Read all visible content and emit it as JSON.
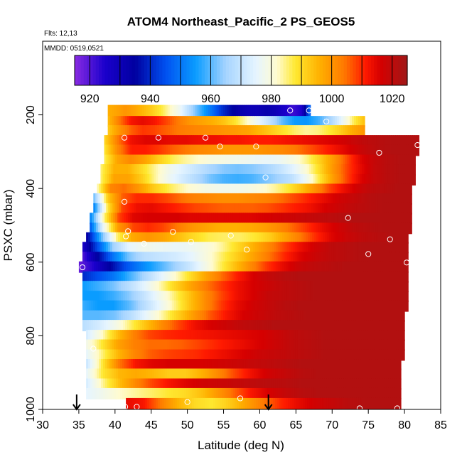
{
  "chart_data": {
    "type": "heatmap",
    "title": "ATOM4 Northeast_Pacific_2 PS_GEOS5",
    "flights_note": "Flts: 12,13",
    "dates_note": "MMDD: 0519,0521",
    "xlabel": "Latitude (deg N)",
    "ylabel": "PSXC (mbar)",
    "xlim": [
      30,
      85
    ],
    "ylim": [
      1000,
      0
    ],
    "x_ticks": [
      30,
      35,
      40,
      45,
      50,
      55,
      60,
      65,
      70,
      75,
      80,
      85
    ],
    "y_ticks": [
      200,
      400,
      600,
      800,
      1000
    ],
    "colorbar": {
      "min": 915,
      "max": 1025,
      "ticks": [
        920,
        940,
        960,
        980,
        1000,
        1020
      ],
      "stops": [
        {
          "value": 915,
          "color": "#8a2be2"
        },
        {
          "value": 925,
          "color": "#1a00cc"
        },
        {
          "value": 935,
          "color": "#0000a0"
        },
        {
          "value": 945,
          "color": "#0050f0"
        },
        {
          "value": 955,
          "color": "#0a9cff"
        },
        {
          "value": 965,
          "color": "#a6d4ff"
        },
        {
          "value": 975,
          "color": "#e6f5ff"
        },
        {
          "value": 982,
          "color": "#fffbd0"
        },
        {
          "value": 988,
          "color": "#ffe830"
        },
        {
          "value": 996,
          "color": "#ffb000"
        },
        {
          "value": 1004,
          "color": "#ff7a00"
        },
        {
          "value": 1011,
          "color": "#ff1a00"
        },
        {
          "value": 1016,
          "color": "#d60000"
        },
        {
          "value": 1025,
          "color": "#a01818"
        }
      ]
    },
    "rows": [
      {
        "p": 188,
        "lat_start": 39.0,
        "lat_end": 67.0,
        "vals": [
          996,
          998,
          1000,
          998,
          995,
          992,
          988,
          983,
          978,
          970,
          962,
          955,
          948,
          941,
          936,
          932,
          930,
          930,
          932,
          930,
          926,
          922,
          925,
          950
        ]
      },
      {
        "p": 218,
        "lat_start": 39.0,
        "lat_end": 74.5,
        "vals": [
          994,
          1004,
          1012,
          1014,
          1012,
          1008,
          1004,
          1000,
          998,
          996,
          993,
          988,
          982,
          975,
          968,
          960,
          955,
          954,
          958,
          965,
          975,
          986,
          994
        ]
      },
      {
        "p": 243,
        "lat_start": 39.0,
        "lat_end": 74.5,
        "vals": [
          992,
          1000,
          1006,
          1009,
          1008,
          1006,
          1004,
          1003,
          1002,
          1001,
          1000,
          999,
          998,
          995,
          992,
          989,
          986,
          984,
          985,
          988,
          992,
          997,
          1000
        ]
      },
      {
        "p": 270,
        "lat_start": 38.5,
        "lat_end": 82.0,
        "vals": [
          990,
          1004,
          1013,
          1015,
          1015,
          1014,
          1014,
          1013,
          1013,
          1012,
          1012,
          1011,
          1011,
          1012,
          1013,
          1014,
          1015,
          1016,
          1018,
          1020,
          1021,
          1022,
          1022,
          1022
        ]
      },
      {
        "p": 296,
        "lat_start": 38.5,
        "lat_end": 82.0,
        "vals": [
          988,
          1002,
          1011,
          1011,
          1009,
          1006,
          1004,
          1002,
          1001,
          1000,
          1000,
          1000,
          1001,
          1002,
          1004,
          1007,
          1010,
          1013,
          1016,
          1019,
          1021,
          1022,
          1022,
          1022
        ]
      },
      {
        "p": 323,
        "lat_start": 38.5,
        "lat_end": 81.5,
        "vals": [
          986,
          998,
          1002,
          998,
          992,
          987,
          984,
          982,
          980,
          979,
          978,
          977,
          976,
          977,
          980,
          985,
          992,
          1000,
          1008,
          1015,
          1019,
          1021,
          1022,
          1022
        ]
      },
      {
        "p": 349,
        "lat_start": 38.0,
        "lat_end": 81.5,
        "vals": [
          985,
          996,
          996,
          990,
          984,
          978,
          974,
          970,
          966,
          963,
          962,
          963,
          965,
          969,
          974,
          981,
          990,
          1000,
          1008,
          1014,
          1019,
          1021,
          1022,
          1022
        ]
      },
      {
        "p": 376,
        "lat_start": 38.0,
        "lat_end": 81.5,
        "vals": [
          985,
          998,
          998,
          992,
          984,
          977,
          972,
          967,
          962,
          959,
          958,
          959,
          962,
          965,
          969,
          977,
          988,
          999,
          1008,
          1015,
          1019,
          1021,
          1022,
          1022
        ]
      },
      {
        "p": 402,
        "lat_start": 37.5,
        "lat_end": 81.0,
        "vals": [
          982,
          1002,
          1005,
          1000,
          993,
          988,
          984,
          981,
          979,
          978,
          978,
          979,
          981,
          984,
          988,
          994,
          1001,
          1008,
          1013,
          1017,
          1020,
          1021,
          1022,
          1022
        ]
      },
      {
        "p": 428,
        "lat_start": 37.0,
        "lat_end": 81.0,
        "vals": [
          960,
          992,
          1006,
          1010,
          1010,
          1008,
          1005,
          1003,
          1002,
          1001,
          1001,
          1002,
          1003,
          1005,
          1008,
          1011,
          1014,
          1017,
          1019,
          1021,
          1022,
          1022,
          1022
        ]
      },
      {
        "p": 455,
        "lat_start": 37.0,
        "lat_end": 81.0,
        "vals": [
          950,
          988,
          1008,
          1013,
          1014,
          1012,
          1010,
          1008,
          1007,
          1006,
          1006,
          1006,
          1007,
          1009,
          1011,
          1013,
          1016,
          1018,
          1020,
          1021,
          1022,
          1022,
          1022
        ]
      },
      {
        "p": 481,
        "lat_start": 36.5,
        "lat_end": 81.0,
        "vals": [
          950,
          985,
          1008,
          1015,
          1016,
          1016,
          1016,
          1015,
          1015,
          1015,
          1015,
          1015,
          1016,
          1017,
          1018,
          1019,
          1020,
          1021,
          1022,
          1022,
          1022,
          1022,
          1022
        ]
      },
      {
        "p": 508,
        "lat_start": 36.5,
        "lat_end": 81.0,
        "vals": [
          945,
          978,
          1000,
          1008,
          1010,
          1008,
          1004,
          1000,
          998,
          996,
          996,
          997,
          999,
          1002,
          1006,
          1010,
          1014,
          1017,
          1020,
          1021,
          1022,
          1022,
          1022
        ]
      },
      {
        "p": 534,
        "lat_start": 36.0,
        "lat_end": 80.5,
        "vals": [
          932,
          960,
          985,
          997,
          1000,
          998,
          994,
          990,
          987,
          986,
          986,
          988,
          992,
          998,
          1004,
          1010,
          1015,
          1018,
          1020,
          1021,
          1022,
          1022
        ]
      },
      {
        "p": 560,
        "lat_start": 35.5,
        "lat_end": 80.5,
        "vals": [
          925,
          945,
          965,
          975,
          978,
          977,
          976,
          977,
          980,
          984,
          990,
          996,
          1002,
          1008,
          1013,
          1017,
          1020,
          1021,
          1022,
          1022,
          1022,
          1022
        ]
      },
      {
        "p": 587,
        "lat_start": 35.5,
        "lat_end": 80.5,
        "vals": [
          920,
          935,
          950,
          962,
          968,
          970,
          972,
          975,
          980,
          986,
          992,
          998,
          1004,
          1010,
          1015,
          1018,
          1020,
          1021,
          1022,
          1022,
          1022,
          1022
        ]
      },
      {
        "p": 613,
        "lat_start": 35.0,
        "lat_end": 80.5,
        "vals": [
          918,
          925,
          935,
          945,
          952,
          958,
          964,
          970,
          978,
          986,
          994,
          1002,
          1009,
          1014,
          1018,
          1020,
          1021,
          1022,
          1022,
          1022,
          1022,
          1022
        ]
      },
      {
        "p": 640,
        "lat_start": 35.5,
        "lat_end": 80.5,
        "vals": [
          940,
          945,
          950,
          958,
          966,
          974,
          982,
          990,
          998,
          1005,
          1011,
          1016,
          1019,
          1021,
          1022,
          1022,
          1022,
          1022,
          1022,
          1022,
          1022,
          1022
        ]
      },
      {
        "p": 666,
        "lat_start": 35.5,
        "lat_end": 80.5,
        "vals": [
          955,
          958,
          962,
          968,
          975,
          983,
          991,
          998,
          1004,
          1009,
          1013,
          1016,
          1018,
          1020,
          1021,
          1022,
          1022,
          1022,
          1022,
          1022,
          1022,
          1022
        ]
      },
      {
        "p": 693,
        "lat_start": 35.5,
        "lat_end": 80.5,
        "vals": [
          955,
          955,
          958,
          963,
          970,
          978,
          986,
          994,
          1002,
          1008,
          1013,
          1016,
          1019,
          1020,
          1021,
          1022,
          1022,
          1022,
          1022,
          1022,
          1022,
          1022
        ]
      },
      {
        "p": 719,
        "lat_start": 35.5,
        "lat_end": 80.5,
        "vals": [
          958,
          955,
          955,
          960,
          968,
          976,
          985,
          994,
          1002,
          1009,
          1014,
          1017,
          1019,
          1021,
          1022,
          1022,
          1022,
          1022,
          1022,
          1022,
          1022,
          1022
        ]
      },
      {
        "p": 746,
        "lat_start": 35.5,
        "lat_end": 80.0,
        "vals": [
          960,
          960,
          962,
          968,
          976,
          984,
          992,
          1000,
          1007,
          1012,
          1016,
          1018,
          1020,
          1021,
          1022,
          1022,
          1022,
          1022,
          1022,
          1022,
          1022
        ]
      },
      {
        "p": 772,
        "lat_start": 35.5,
        "lat_end": 80.0,
        "vals": [
          968,
          972,
          978,
          986,
          994,
          1002,
          1008,
          1013,
          1016,
          1018,
          1020,
          1021,
          1022,
          1022,
          1022,
          1022,
          1022,
          1022,
          1022,
          1022,
          1022
        ]
      },
      {
        "p": 799,
        "lat_start": 36.0,
        "lat_end": 80.0,
        "vals": [
          972,
          982,
          994,
          1003,
          1008,
          1010,
          1011,
          1012,
          1013,
          1014,
          1015,
          1016,
          1018,
          1020,
          1021,
          1022,
          1022,
          1022,
          1022,
          1022,
          1022
        ]
      },
      {
        "p": 825,
        "lat_start": 36.0,
        "lat_end": 80.0,
        "vals": [
          978,
          988,
          998,
          1003,
          1005,
          1005,
          1006,
          1008,
          1010,
          1012,
          1014,
          1016,
          1018,
          1020,
          1021,
          1022,
          1022,
          1022,
          1022,
          1022,
          1022
        ]
      },
      {
        "p": 852,
        "lat_start": 36.0,
        "lat_end": 80.0,
        "vals": [
          975,
          985,
          995,
          1002,
          1006,
          1008,
          1009,
          1010,
          1012,
          1014,
          1016,
          1018,
          1019,
          1020,
          1021,
          1022,
          1022,
          1022,
          1022,
          1022,
          1022
        ]
      },
      {
        "p": 878,
        "lat_start": 36.0,
        "lat_end": 79.5,
        "vals": [
          970,
          988,
          1004,
          1012,
          1015,
          1016,
          1016,
          1016,
          1017,
          1018,
          1019,
          1020,
          1021,
          1022,
          1022,
          1022,
          1022,
          1022,
          1022,
          1022
        ]
      },
      {
        "p": 904,
        "lat_start": 36.0,
        "lat_end": 79.5,
        "vals": [
          975,
          988,
          995,
          997,
          995,
          992,
          992,
          996,
          1002,
          1008,
          1013,
          1017,
          1019,
          1021,
          1022,
          1022,
          1022,
          1022,
          1022,
          1022
        ]
      },
      {
        "p": 931,
        "lat_start": 36.0,
        "lat_end": 79.5,
        "vals": [
          972,
          984,
          994,
          1002,
          1008,
          1012,
          1015,
          1017,
          1018,
          1019,
          1020,
          1021,
          1021,
          1022,
          1022,
          1022,
          1022,
          1022,
          1022,
          1022
        ]
      },
      {
        "p": 957,
        "lat_start": 36.0,
        "lat_end": 79.5,
        "vals": [
          975,
          978,
          982,
          984,
          986,
          988,
          990,
          994,
          1000,
          1006,
          1012,
          1016,
          1019,
          1021,
          1022,
          1022,
          1022,
          1022,
          1022,
          1022
        ]
      },
      {
        "p": 984,
        "lat_start": 41.5,
        "lat_end": 79.5,
        "vals": [
          1014,
          1012,
          1004,
          996,
          990,
          988,
          992,
          998,
          1004,
          1010,
          1014,
          1017,
          1019,
          1021,
          1022,
          1022,
          1022
        ]
      }
    ],
    "points": [
      [
        64.2,
        188
      ],
      [
        66.8,
        188
      ],
      [
        69.2,
        218
      ],
      [
        41.3,
        262
      ],
      [
        46.0,
        262
      ],
      [
        52.5,
        262
      ],
      [
        54.5,
        286
      ],
      [
        59.5,
        286
      ],
      [
        81.8,
        282
      ],
      [
        76.5,
        303
      ],
      [
        60.8,
        370
      ],
      [
        41.3,
        436
      ],
      [
        72.2,
        480
      ],
      [
        41.8,
        516
      ],
      [
        48.0,
        518
      ],
      [
        41.5,
        530
      ],
      [
        44.0,
        550
      ],
      [
        50.5,
        545
      ],
      [
        56.0,
        528
      ],
      [
        78.0,
        538
      ],
      [
        58.2,
        566
      ],
      [
        75.0,
        578
      ],
      [
        80.3,
        601
      ],
      [
        35.5,
        614
      ],
      [
        37.0,
        835
      ],
      [
        50.0,
        980
      ],
      [
        57.3,
        970
      ],
      [
        41.4,
        993
      ],
      [
        43.0,
        993
      ],
      [
        73.8,
        997
      ],
      [
        79.0,
        997
      ]
    ],
    "arrows": [
      {
        "lat": 34.7
      },
      {
        "lat": 61.2
      }
    ]
  }
}
